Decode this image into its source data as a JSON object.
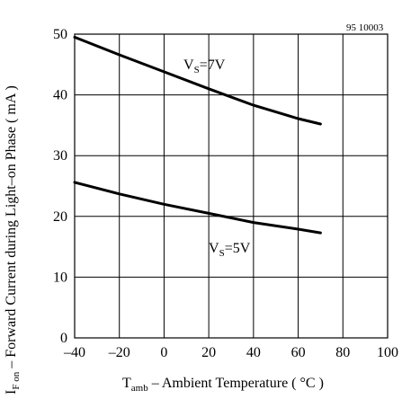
{
  "chart_data": {
    "type": "line",
    "reference_number": "95 10003",
    "xlabel": {
      "main": "T",
      "sub": "amb",
      "rest": " – Ambient Temperature ( °C )"
    },
    "ylabel": {
      "main": "I",
      "sub": "F on",
      "rest": " – Forward Current during Light–on Phase ( mA )"
    },
    "xlim": [
      -40,
      100
    ],
    "ylim": [
      0,
      50
    ],
    "x_ticks": [
      "–40",
      "–20",
      "0",
      "20",
      "40",
      "60",
      "80",
      "100"
    ],
    "y_ticks": [
      "0",
      "10",
      "20",
      "30",
      "40",
      "50"
    ],
    "grid": true,
    "series": [
      {
        "name": {
          "main": "V",
          "sub": "S",
          "rest": "=7V"
        },
        "x": [
          -40,
          -20,
          0,
          20,
          40,
          60,
          70
        ],
        "y": [
          49.5,
          46.6,
          43.8,
          41.0,
          38.3,
          36.1,
          35.2
        ]
      },
      {
        "name": {
          "main": "V",
          "sub": "S",
          "rest": "=5V"
        },
        "x": [
          -40,
          -20,
          0,
          20,
          40,
          60,
          70
        ],
        "y": [
          25.6,
          23.7,
          22.0,
          20.5,
          19.0,
          17.9,
          17.3
        ]
      }
    ]
  }
}
